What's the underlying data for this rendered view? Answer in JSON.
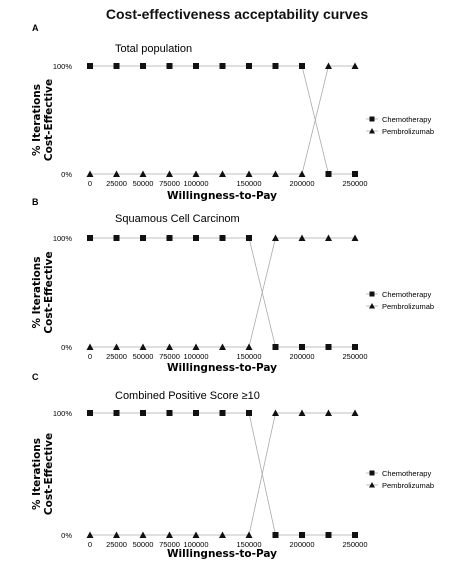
{
  "title": "Cost-effectiveness acceptability curves",
  "legend_labels": [
    "Chemotherapy",
    "Pembrolizumab"
  ],
  "colors": {
    "markers": "#111111",
    "connector": "#aaaaaa"
  },
  "chart_data": [
    {
      "type": "line",
      "panel": "A",
      "title": "Total population",
      "xlabel": "Willingness-to-Pay",
      "ylabel": [
        "% Iterations",
        "Cost-Effective"
      ],
      "x_ticks": [
        0,
        25000,
        50000,
        75000,
        100000,
        150000,
        200000,
        250000
      ],
      "x_tick_labels": [
        "0",
        "25000",
        "50000",
        "75000",
        "100000",
        "150000",
        "200000",
        "250000"
      ],
      "y_ticks": [
        0,
        100
      ],
      "y_tick_labels": [
        "0%",
        "100%"
      ],
      "xlim": [
        0,
        250000
      ],
      "ylim": [
        0,
        100
      ],
      "legend_position": "right",
      "x": [
        0,
        25000,
        50000,
        75000,
        100000,
        125000,
        150000,
        175000,
        200000,
        225000,
        250000
      ],
      "series": [
        {
          "name": "Chemotherapy",
          "marker": "square",
          "values": [
            100,
            100,
            100,
            100,
            100,
            100,
            100,
            100,
            100,
            0,
            0
          ]
        },
        {
          "name": "Pembrolizumab",
          "marker": "triangle",
          "values": [
            0,
            0,
            0,
            0,
            0,
            0,
            0,
            0,
            0,
            100,
            100
          ]
        }
      ]
    },
    {
      "type": "line",
      "panel": "B",
      "title": "Squamous Cell Carcinom",
      "xlabel": "Willingness-to-Pay",
      "ylabel": [
        "% Iterations",
        "Cost-Effective"
      ],
      "x_ticks": [
        0,
        25000,
        50000,
        75000,
        100000,
        150000,
        200000,
        250000
      ],
      "x_tick_labels": [
        "0",
        "25000",
        "50000",
        "75000",
        "100000",
        "150000",
        "200000",
        "250000"
      ],
      "y_ticks": [
        0,
        100
      ],
      "y_tick_labels": [
        "0%",
        "100%"
      ],
      "xlim": [
        0,
        250000
      ],
      "ylim": [
        0,
        100
      ],
      "legend_position": "right",
      "x": [
        0,
        25000,
        50000,
        75000,
        100000,
        125000,
        150000,
        175000,
        200000,
        225000,
        250000
      ],
      "series": [
        {
          "name": "Chemotherapy",
          "marker": "square",
          "values": [
            100,
            100,
            100,
            100,
            100,
            100,
            100,
            0,
            0,
            0,
            0
          ]
        },
        {
          "name": "Pembrolizumab",
          "marker": "triangle",
          "values": [
            0,
            0,
            0,
            0,
            0,
            0,
            0,
            100,
            100,
            100,
            100
          ]
        }
      ]
    },
    {
      "type": "line",
      "panel": "C",
      "title": "Combined Positive Score ≥10",
      "xlabel": "Willingness-to-Pay",
      "ylabel": [
        "% Iterations",
        "Cost-Effective"
      ],
      "x_ticks": [
        0,
        25000,
        50000,
        75000,
        100000,
        150000,
        200000,
        250000
      ],
      "x_tick_labels": [
        "0",
        "25000",
        "50000",
        "75000",
        "100000",
        "150000",
        "200000",
        "250000"
      ],
      "y_ticks": [
        0,
        100
      ],
      "y_tick_labels": [
        "0%",
        "100%"
      ],
      "xlim": [
        0,
        250000
      ],
      "ylim": [
        0,
        100
      ],
      "legend_position": "right",
      "x": [
        0,
        25000,
        50000,
        75000,
        100000,
        125000,
        150000,
        175000,
        200000,
        225000,
        250000
      ],
      "series": [
        {
          "name": "Chemotherapy",
          "marker": "square",
          "values": [
            100,
            100,
            100,
            100,
            100,
            100,
            100,
            0,
            0,
            0,
            0
          ]
        },
        {
          "name": "Pembrolizumab",
          "marker": "triangle",
          "values": [
            0,
            0,
            0,
            0,
            0,
            0,
            0,
            100,
            100,
            100,
            100
          ]
        }
      ]
    }
  ]
}
